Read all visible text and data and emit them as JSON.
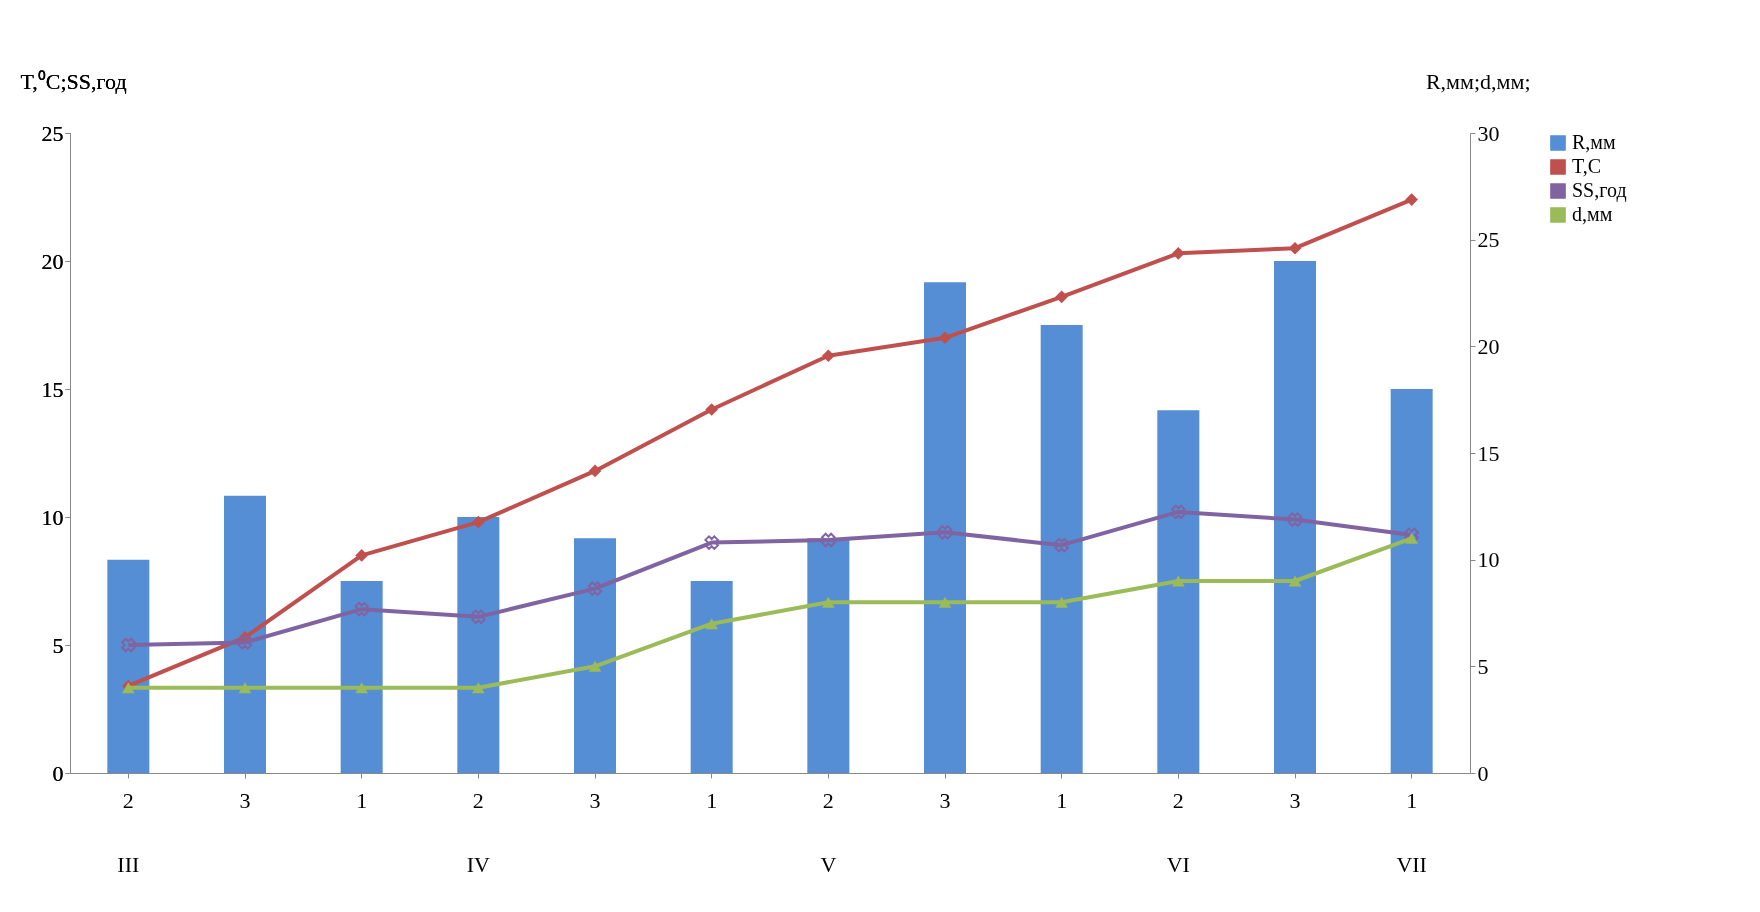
{
  "chart_data": {
    "type": "bar",
    "ylabel": "T,⁰C;SS,год",
    "y2label": "R,мм;d,мм;",
    "categories": [
      "2\nIII",
      "3",
      "1",
      "2\nIV",
      "3",
      "1",
      "2\nV",
      "3",
      "1",
      "2\nVI",
      "3",
      "1\nVII"
    ],
    "series": [
      {
        "name": "R,мм",
        "axis": "y2",
        "color": "#558ed5",
        "values": [
          10,
          13,
          9,
          12,
          11,
          9,
          11,
          23,
          21,
          17,
          24,
          18
        ]
      },
      {
        "name": "T,C",
        "type": "line",
        "marker": "diamond",
        "color": "#c0504d",
        "values": [
          3.4,
          5.3,
          8.5,
          9.8,
          11.8,
          14.2,
          16.3,
          17.0,
          18.6,
          20.3,
          20.5,
          22.4
        ]
      },
      {
        "name": "SS,год",
        "type": "line",
        "marker": "cross",
        "color": "#8064a2",
        "values": [
          5.0,
          5.1,
          6.4,
          6.1,
          7.2,
          9.0,
          9.1,
          9.4,
          8.9,
          10.2,
          9.9,
          9.3
        ]
      },
      {
        "name": "d,мм",
        "type": "line",
        "marker": "triangle",
        "axis": "y2",
        "color": "#9bbb59",
        "values": [
          4,
          4,
          4,
          4,
          5,
          7,
          8,
          8,
          8,
          9,
          9,
          11
        ]
      }
    ],
    "ylim": [
      0,
      25
    ],
    "yticks": [
      0,
      5,
      10,
      15,
      20,
      25
    ],
    "y2lim": [
      0,
      30
    ],
    "y2ticks": [
      0,
      5,
      10,
      15,
      20,
      25,
      30
    ],
    "grid": false,
    "legend": "right"
  }
}
